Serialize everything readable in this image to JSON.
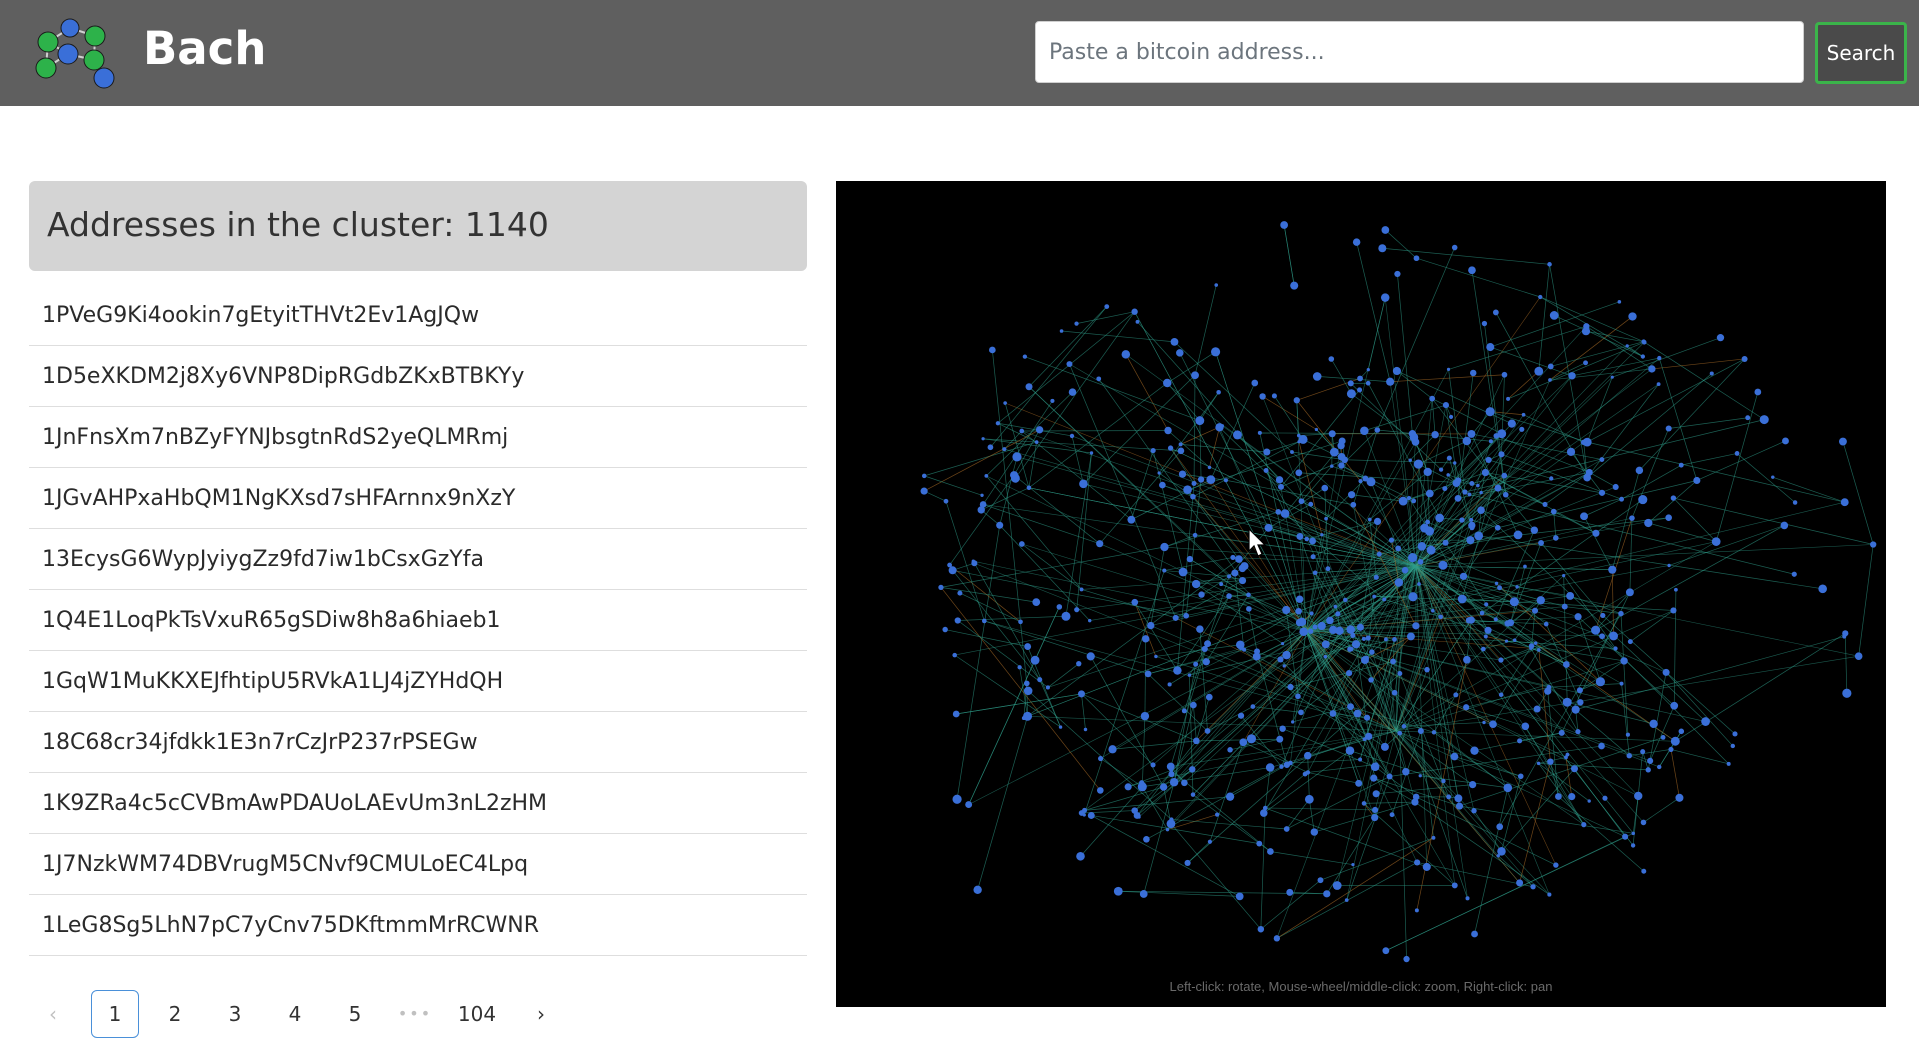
{
  "app": {
    "brand": "Bach",
    "search_placeholder": "Paste a bitcoin address...",
    "search_button": "Search"
  },
  "cluster": {
    "header": "Addresses in the cluster: 1140",
    "addresses": [
      "1PVeG9Ki4ookin7gEtyitTHVt2Ev1AgJQw",
      "1D5eXKDM2j8Xy6VNP8DipRGdbZKxBTBKYy",
      "1JnFnsXm7nBZyFYNJbsgtnRdS2yeQLMRmj",
      "1JGvAHPxaHbQM1NgKXsd7sHFArnnx9nXzY",
      "13EcysG6WypJyiygZz9fd7iw1bCsxGzYfa",
      "1Q4E1LoqPkTsVxuR65gSDiw8h8a6hiaeb1",
      "1GqW1MuKKXEJfhtipU5RVkA1LJ4jZYHdQH",
      "18C68cr34jfdkk1E3n7rCzJrP237rPSEGw",
      "1K9ZRa4c5cCVBmAwPDAUoLAEvUm3nL2zHM",
      "1J7NzkWM74DBVrugM5CNvf9CMULoEC4Lpq",
      "1LeG8Sg5LhN7pC7yCnv75DKftmmMrRCWNR"
    ]
  },
  "pagination": {
    "prev": "‹",
    "next": "›",
    "pages": [
      "1",
      "2",
      "3",
      "4",
      "5"
    ],
    "ellipsis": "•••",
    "last": "104",
    "active": "1"
  },
  "graph": {
    "hint": "Left-click: rotate, Mouse-wheel/middle-click: zoom, Right-click: pan",
    "node_color": "#3a6fd8",
    "edge_color": "#2f9e8a",
    "edge_accent_color": "#b8742a",
    "background": "#000000"
  },
  "colors": {
    "header_bg": "#5f5f5f",
    "search_button_border": "#3bb44a",
    "logo_green": "#2db24a",
    "logo_blue": "#3a6fd8"
  }
}
